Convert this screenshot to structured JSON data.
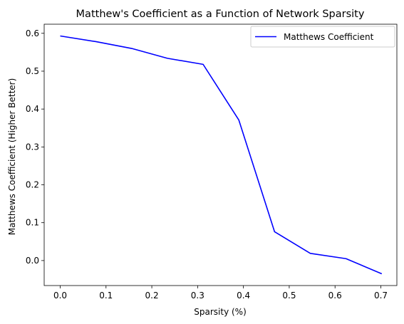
{
  "chart_data": {
    "type": "line",
    "title": "Matthew's Coefficient as a Function of Network Sparsity",
    "xlabel": "Sparsity (%)",
    "ylabel": "Matthews Coefficient (Higher Better)",
    "xlim": [
      -0.035,
      0.735
    ],
    "ylim": [
      -0.066,
      0.624
    ],
    "xticks": [
      0.0,
      0.1,
      0.2,
      0.3,
      0.4,
      0.5,
      0.6,
      0.7
    ],
    "xtick_labels": [
      "0.0",
      "0.1",
      "0.2",
      "0.3",
      "0.4",
      "0.5",
      "0.6",
      "0.7"
    ],
    "yticks": [
      0.0,
      0.1,
      0.2,
      0.3,
      0.4,
      0.5,
      0.6
    ],
    "ytick_labels": [
      "0.0",
      "0.1",
      "0.2",
      "0.3",
      "0.4",
      "0.5",
      "0.6"
    ],
    "grid": false,
    "legend": "top-right",
    "series": [
      {
        "name": "Matthews Coefficient",
        "color": "#0000ff",
        "x": [
          0.0,
          0.078,
          0.156,
          0.234,
          0.312,
          0.39,
          0.468,
          0.546,
          0.624,
          0.702
        ],
        "y": [
          0.593,
          0.578,
          0.56,
          0.534,
          0.518,
          0.371,
          0.076,
          0.019,
          0.005,
          -0.035
        ]
      }
    ]
  }
}
